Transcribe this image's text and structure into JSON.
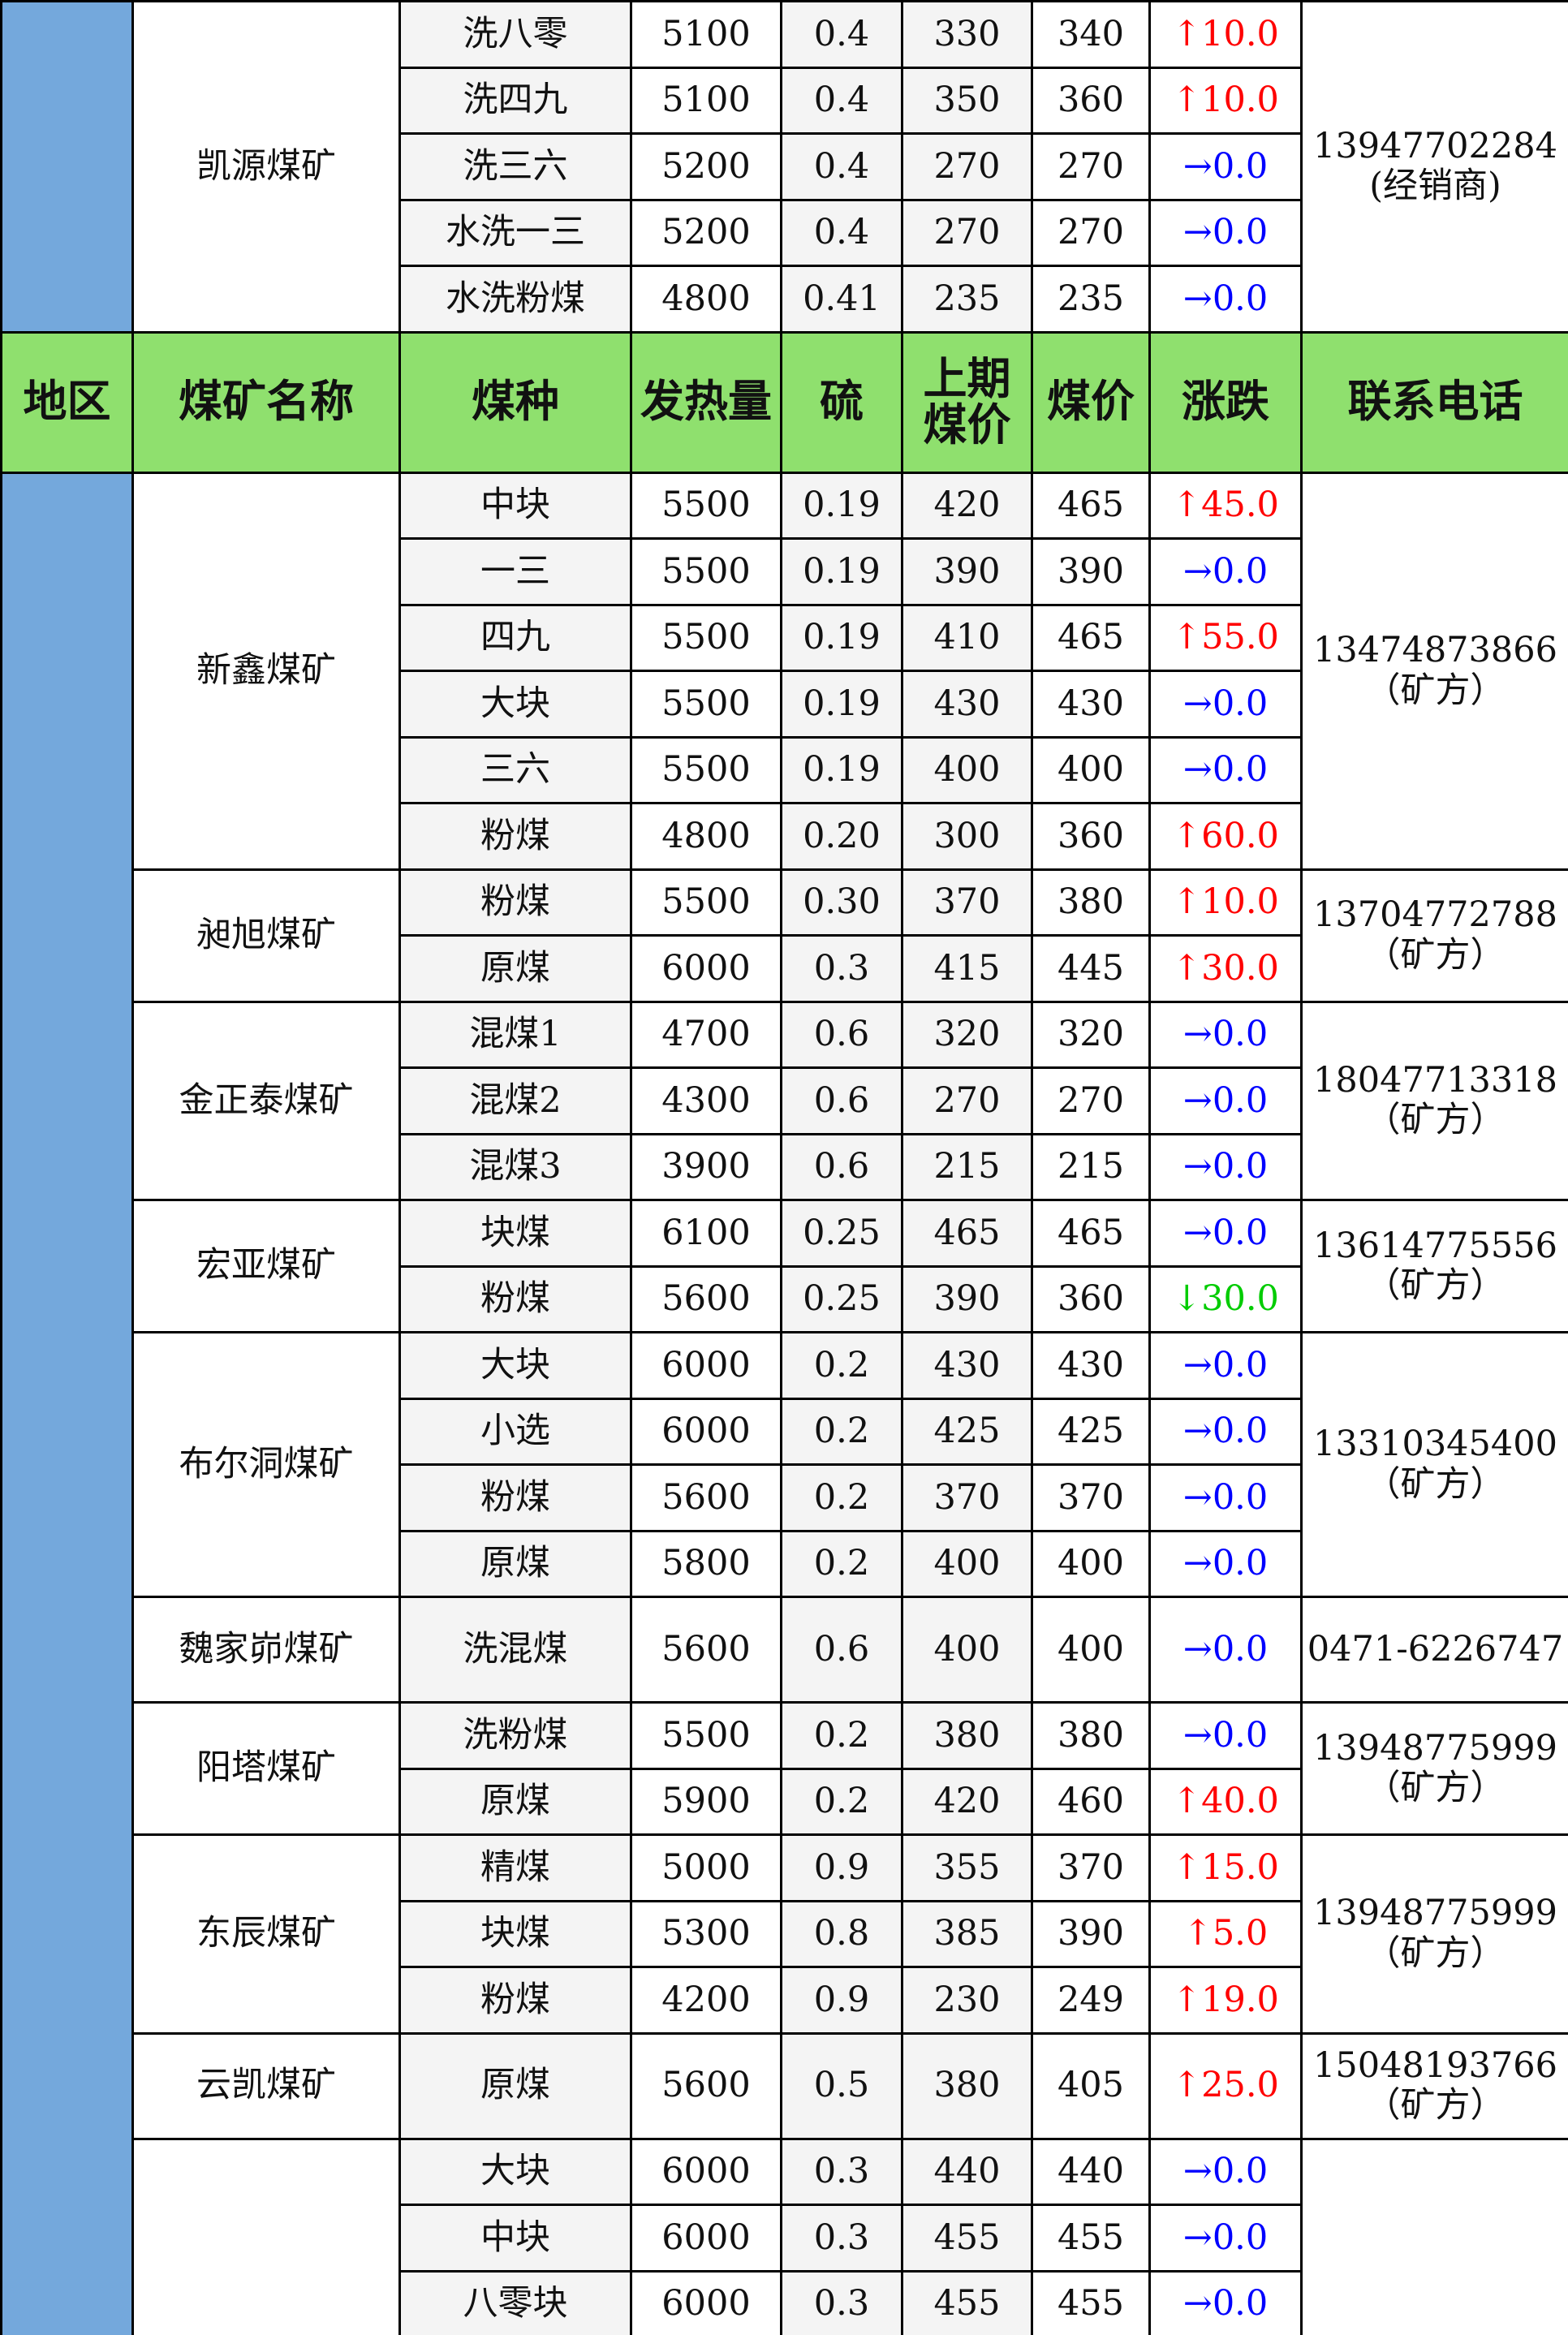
{
  "header": [
    "地区",
    "煤矿名称",
    "煤种",
    "发热量",
    "硫",
    "上期煤价",
    "煤价",
    "涨跌",
    "联系电话"
  ],
  "trend_colors": {
    "↑": "#ff0000",
    "→": "#0000ff",
    "↓": "#00cc00"
  },
  "top_groups": [
    {
      "mine": "凯源煤矿",
      "phone": "13947702284",
      "phone_note": "(经销商)",
      "rows": [
        {
          "type": "洗八零",
          "heat": "5100",
          "sulfur": "0.4",
          "prev": "330",
          "price": "340",
          "arrow": "↑",
          "change": "10.0"
        },
        {
          "type": "洗四九",
          "heat": "5100",
          "sulfur": "0.4",
          "prev": "350",
          "price": "360",
          "arrow": "↑",
          "change": "10.0"
        },
        {
          "type": "洗三六",
          "heat": "5200",
          "sulfur": "0.4",
          "prev": "270",
          "price": "270",
          "arrow": "→",
          "change": "0.0"
        },
        {
          "type": "水洗一三",
          "heat": "5200",
          "sulfur": "0.4",
          "prev": "270",
          "price": "270",
          "arrow": "→",
          "change": "0.0"
        },
        {
          "type": "水洗粉煤",
          "heat": "4800",
          "sulfur": "0.41",
          "prev": "235",
          "price": "235",
          "arrow": "→",
          "change": "0.0"
        }
      ]
    }
  ],
  "groups": [
    {
      "mine": "新鑫煤矿",
      "phone": "13474873866",
      "phone_note": "（矿方）",
      "rows": [
        {
          "type": "中块",
          "heat": "5500",
          "sulfur": "0.19",
          "prev": "420",
          "price": "465",
          "arrow": "↑",
          "change": "45.0"
        },
        {
          "type": "一三",
          "heat": "5500",
          "sulfur": "0.19",
          "prev": "390",
          "price": "390",
          "arrow": "→",
          "change": "0.0"
        },
        {
          "type": "四九",
          "heat": "5500",
          "sulfur": "0.19",
          "prev": "410",
          "price": "465",
          "arrow": "↑",
          "change": "55.0"
        },
        {
          "type": "大块",
          "heat": "5500",
          "sulfur": "0.19",
          "prev": "430",
          "price": "430",
          "arrow": "→",
          "change": "0.0"
        },
        {
          "type": "三六",
          "heat": "5500",
          "sulfur": "0.19",
          "prev": "400",
          "price": "400",
          "arrow": "→",
          "change": "0.0"
        },
        {
          "type": "粉煤",
          "heat": "4800",
          "sulfur": "0.20",
          "prev": "300",
          "price": "360",
          "arrow": "↑",
          "change": "60.0"
        }
      ]
    },
    {
      "mine": "昶旭煤矿",
      "phone": "13704772788",
      "phone_note": "（矿方）",
      "rows": [
        {
          "type": "粉煤",
          "heat": "5500",
          "sulfur": "0.30",
          "prev": "370",
          "price": "380",
          "arrow": "↑",
          "change": "10.0"
        },
        {
          "type": "原煤",
          "heat": "6000",
          "sulfur": "0.3",
          "prev": "415",
          "price": "445",
          "arrow": "↑",
          "change": "30.0"
        }
      ]
    },
    {
      "mine": "金正泰煤矿",
      "phone": "18047713318",
      "phone_note": "（矿方）",
      "rows": [
        {
          "type": "混煤1",
          "heat": "4700",
          "sulfur": "0.6",
          "prev": "320",
          "price": "320",
          "arrow": "→",
          "change": "0.0"
        },
        {
          "type": "混煤2",
          "heat": "4300",
          "sulfur": "0.6",
          "prev": "270",
          "price": "270",
          "arrow": "→",
          "change": "0.0"
        },
        {
          "type": "混煤3",
          "heat": "3900",
          "sulfur": "0.6",
          "prev": "215",
          "price": "215",
          "arrow": "→",
          "change": "0.0"
        }
      ]
    },
    {
      "mine": "宏亚煤矿",
      "phone": "13614775556",
      "phone_note": "（矿方）",
      "rows": [
        {
          "type": "块煤",
          "heat": "6100",
          "sulfur": "0.25",
          "prev": "465",
          "price": "465",
          "arrow": "→",
          "change": "0.0"
        },
        {
          "type": "粉煤",
          "heat": "5600",
          "sulfur": "0.25",
          "prev": "390",
          "price": "360",
          "arrow": "↓",
          "change": "30.0"
        }
      ]
    },
    {
      "mine": "布尔洞煤矿",
      "phone": "13310345400",
      "phone_note": "（矿方）",
      "rows": [
        {
          "type": "大块",
          "heat": "6000",
          "sulfur": "0.2",
          "prev": "430",
          "price": "430",
          "arrow": "→",
          "change": "0.0"
        },
        {
          "type": "小选",
          "heat": "6000",
          "sulfur": "0.2",
          "prev": "425",
          "price": "425",
          "arrow": "→",
          "change": "0.0"
        },
        {
          "type": "粉煤",
          "heat": "5600",
          "sulfur": "0.2",
          "prev": "370",
          "price": "370",
          "arrow": "→",
          "change": "0.0"
        },
        {
          "type": "原煤",
          "heat": "5800",
          "sulfur": "0.2",
          "prev": "400",
          "price": "400",
          "arrow": "→",
          "change": "0.0"
        }
      ]
    },
    {
      "mine": "魏家峁煤矿",
      "phone": "0471-6226747",
      "rows": [
        {
          "type": "洗混煤",
          "heat": "5600",
          "sulfur": "0.6",
          "prev": "400",
          "price": "400",
          "arrow": "→",
          "change": "0.0"
        }
      ]
    },
    {
      "mine": "阳塔煤矿",
      "phone": "13948775999",
      "phone_note": "（矿方）",
      "rows": [
        {
          "type": "洗粉煤",
          "heat": "5500",
          "sulfur": "0.2",
          "prev": "380",
          "price": "380",
          "arrow": "→",
          "change": "0.0"
        },
        {
          "type": "原煤",
          "heat": "5900",
          "sulfur": "0.2",
          "prev": "420",
          "price": "460",
          "arrow": "↑",
          "change": "40.0"
        }
      ]
    },
    {
      "mine": "东辰煤矿",
      "phone": "13948775999",
      "phone_note": "（矿方）",
      "rows": [
        {
          "type": "精煤",
          "heat": "5000",
          "sulfur": "0.9",
          "prev": "355",
          "price": "370",
          "arrow": "↑",
          "change": "15.0"
        },
        {
          "type": "块煤",
          "heat": "5300",
          "sulfur": "0.8",
          "prev": "385",
          "price": "390",
          "arrow": "↑",
          "change": "5.0"
        },
        {
          "type": "粉煤",
          "heat": "4200",
          "sulfur": "0.9",
          "prev": "230",
          "price": "249",
          "arrow": "↑",
          "change": "19.0"
        }
      ]
    },
    {
      "mine": "云凯煤矿",
      "phone": "15048193766",
      "phone_note": "（矿方）",
      "rows": [
        {
          "type": "原煤",
          "heat": "5600",
          "sulfur": "0.5",
          "prev": "380",
          "price": "405",
          "arrow": "↑",
          "change": "25.0"
        }
      ]
    },
    {
      "rows": [
        {
          "type": "大块",
          "heat": "6000",
          "sulfur": "0.3",
          "prev": "440",
          "price": "440",
          "arrow": "→",
          "change": "0.0"
        },
        {
          "type": "中块",
          "heat": "6000",
          "sulfur": "0.3",
          "prev": "455",
          "price": "455",
          "arrow": "→",
          "change": "0.0"
        },
        {
          "type": "八零块",
          "heat": "6000",
          "sulfur": "0.3",
          "prev": "455",
          "price": "455",
          "arrow": "→",
          "change": "0.0"
        }
      ]
    }
  ]
}
